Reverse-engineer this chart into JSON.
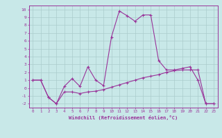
{
  "upper_x": [
    0,
    1,
    2,
    3,
    4,
    5,
    6,
    7,
    8,
    9,
    10,
    11,
    12,
    13,
    14,
    15,
    16,
    17,
    18,
    19,
    20,
    21,
    22,
    23
  ],
  "upper_y": [
    1.0,
    1.0,
    -1.2,
    -2.0,
    0.2,
    1.2,
    0.2,
    2.7,
    1.0,
    0.3,
    6.5,
    9.8,
    9.2,
    8.5,
    9.3,
    9.3,
    3.5,
    2.3,
    2.3,
    2.5,
    2.7,
    1.0,
    -2.0,
    -2.0
  ],
  "lower_x": [
    0,
    1,
    2,
    3,
    4,
    5,
    6,
    7,
    8,
    9,
    10,
    11,
    12,
    13,
    14,
    15,
    16,
    17,
    18,
    19,
    20,
    21,
    22,
    23
  ],
  "lower_y": [
    1.0,
    1.0,
    -1.2,
    -2.0,
    -0.5,
    -0.5,
    -0.7,
    -0.5,
    -0.4,
    -0.2,
    0.1,
    0.4,
    0.7,
    1.0,
    1.3,
    1.5,
    1.7,
    2.0,
    2.2,
    2.3,
    2.3,
    2.3,
    -2.0,
    -2.0
  ],
  "line_color": "#993399",
  "bg_color": "#c8e8e8",
  "grid_color": "#aacccc",
  "xlabel": "Windchill (Refroidissement éolien,°C)",
  "ylim": [
    -2.5,
    10.5
  ],
  "xlim": [
    -0.5,
    23.5
  ],
  "yticks": [
    -2,
    -1,
    0,
    1,
    2,
    3,
    4,
    5,
    6,
    7,
    8,
    9,
    10
  ],
  "xticks": [
    0,
    1,
    2,
    3,
    4,
    5,
    6,
    7,
    8,
    9,
    10,
    11,
    12,
    13,
    14,
    15,
    16,
    17,
    18,
    19,
    20,
    21,
    22,
    23
  ]
}
